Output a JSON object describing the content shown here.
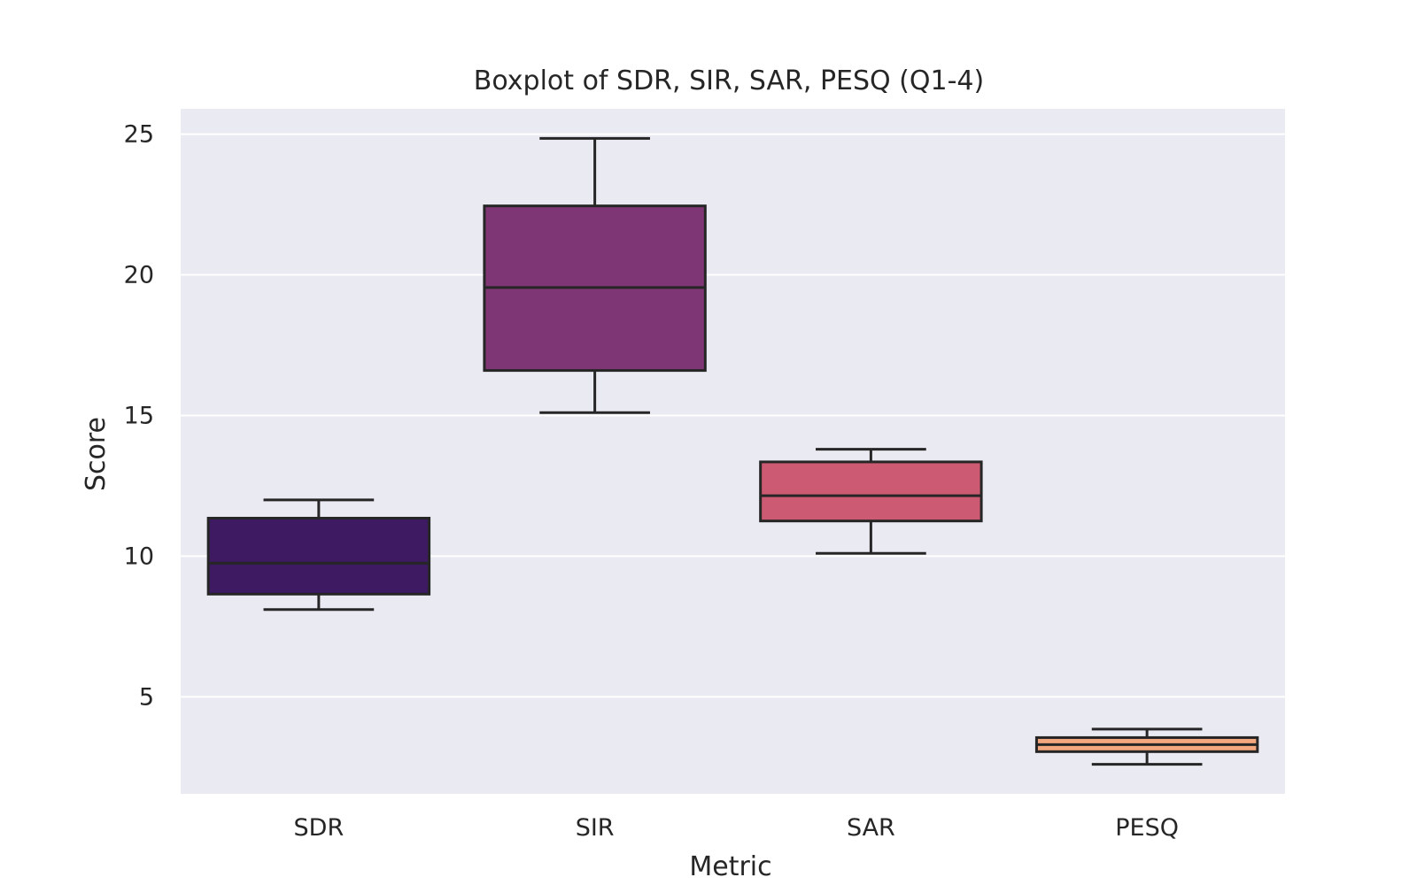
{
  "chart_data": {
    "type": "box",
    "title": "Boxplot of SDR, SIR, SAR, PESQ (Q1-4)",
    "xlabel": "Metric",
    "ylabel": "Score",
    "categories": [
      "SDR",
      "SIR",
      "SAR",
      "PESQ"
    ],
    "boxes": [
      {
        "category": "SDR",
        "min": 8.1,
        "q1": 8.65,
        "median": 9.75,
        "q3": 11.35,
        "max": 12.0
      },
      {
        "category": "SIR",
        "min": 15.1,
        "q1": 16.6,
        "median": 19.55,
        "q3": 22.45,
        "max": 24.85
      },
      {
        "category": "SAR",
        "min": 10.1,
        "q1": 11.25,
        "median": 12.15,
        "q3": 13.35,
        "max": 13.8
      },
      {
        "category": "PESQ",
        "min": 2.6,
        "q1": 3.05,
        "median": 3.3,
        "q3": 3.55,
        "max": 3.85
      }
    ],
    "yticks": [
      5,
      10,
      15,
      20,
      25
    ],
    "ylim": [
      1.55,
      25.9
    ],
    "grid": true,
    "colors": {
      "SDR": "#3d1a62",
      "SIR": "#7f3674",
      "SAR": "#cc5a72",
      "PESQ": "#f3a77e",
      "background": "#eaeaf2",
      "grid": "#ffffff",
      "stroke": "#262626"
    }
  }
}
